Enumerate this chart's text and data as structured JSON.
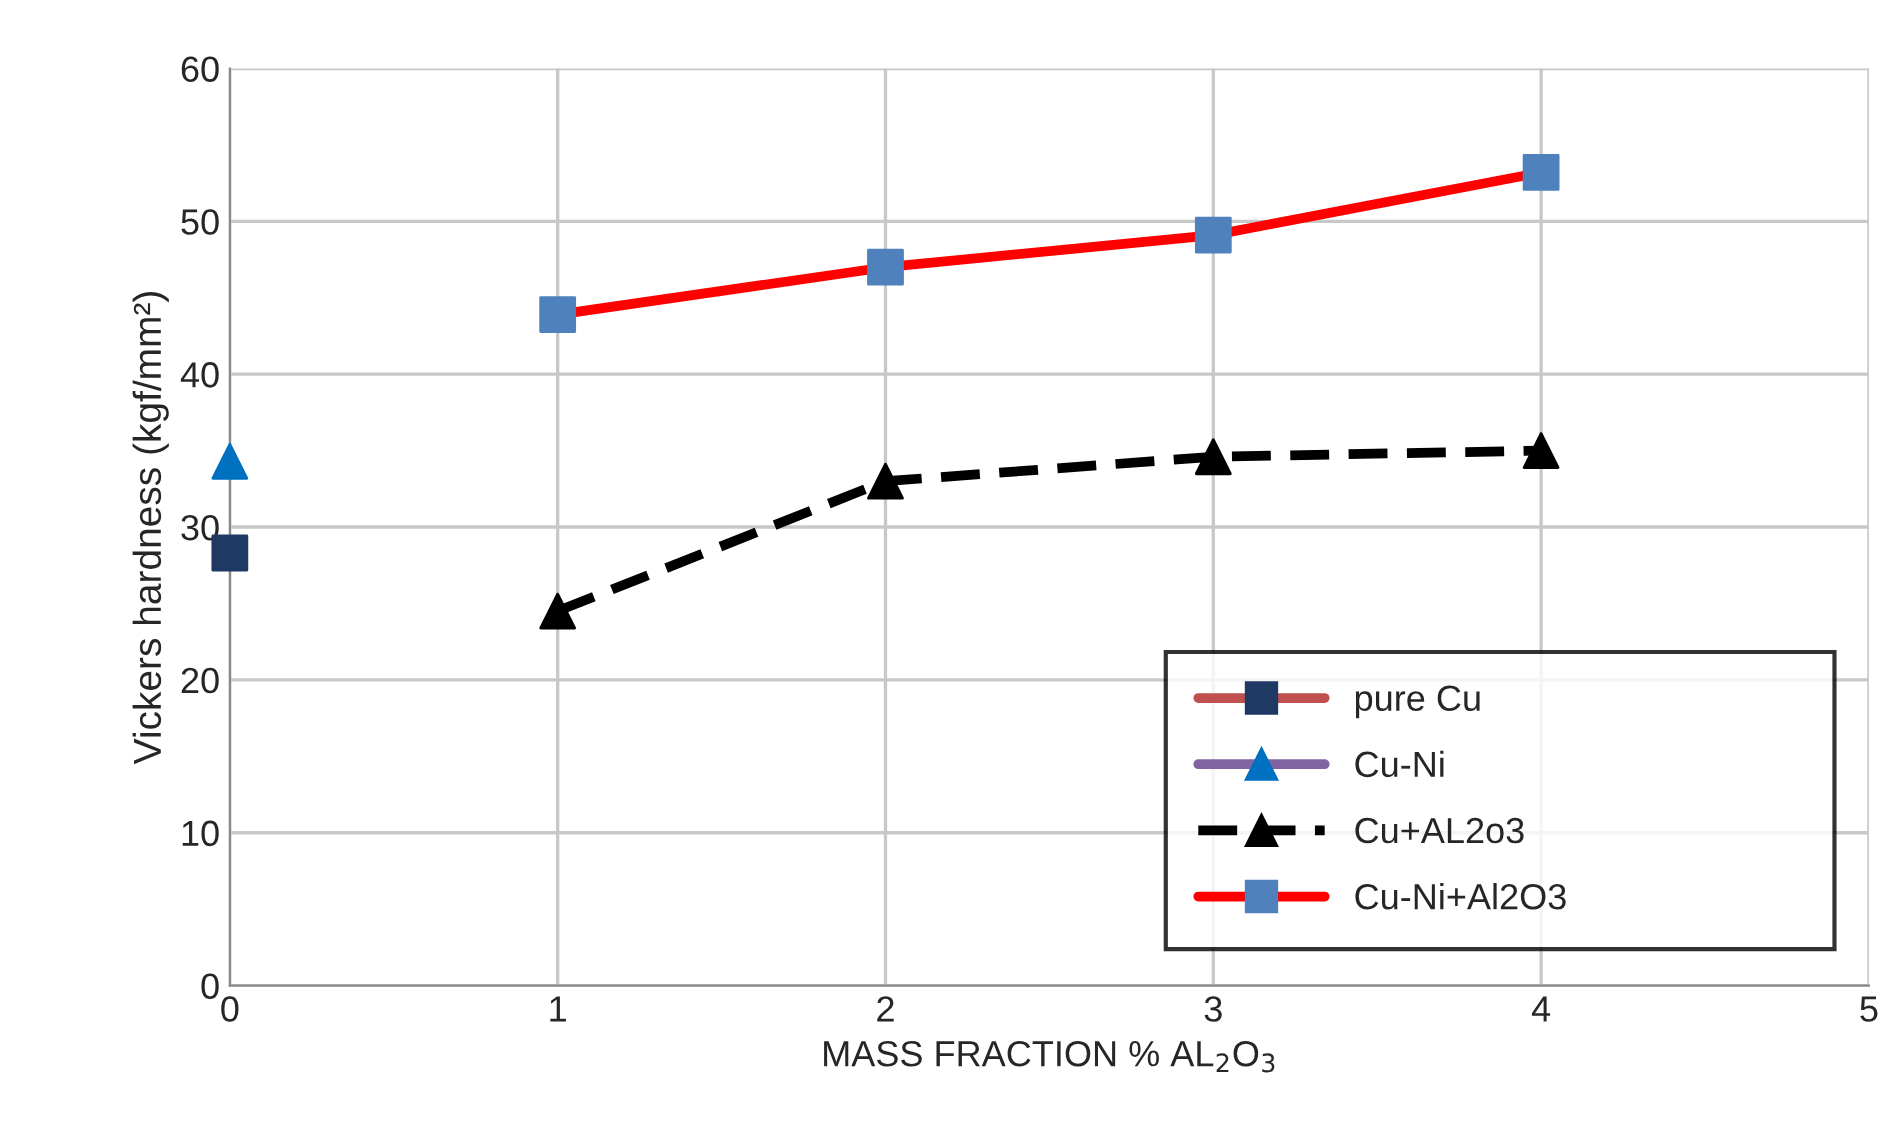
{
  "chart_data": {
    "type": "line",
    "xlabel": "MASS FRACTION % AL$_{2}$O$_{3}$",
    "ylabel": "Vickers hardness (kgf/mm²)",
    "xlim": [
      0,
      5
    ],
    "xticks": [
      0,
      1,
      2,
      3,
      4,
      5
    ],
    "ylim": [
      0,
      60
    ],
    "yticks": [
      0,
      10,
      20,
      30,
      40,
      50,
      60
    ],
    "grid": true,
    "legend": "bottom right",
    "series": [
      {
        "name": "pure Cu",
        "color": "#c0504d",
        "colors": [
          "#1f3864"
        ],
        "marker": "square",
        "line_style": "solid",
        "x": [
          0
        ],
        "values": [
          28.3
        ]
      },
      {
        "name": "Cu-Ni",
        "color": "#8064a2",
        "colors": [
          "#0070c0"
        ],
        "marker": "triangle",
        "line_style": "solid",
        "x": [
          0
        ],
        "values": [
          34.3
        ]
      },
      {
        "name": "Cu+AL2o3",
        "color": "#000000",
        "colors": [
          "#000000",
          "#000000",
          "#000000",
          "#000000"
        ],
        "marker": "triangle",
        "line_style": "dashed",
        "x": [
          1,
          2,
          3,
          4
        ],
        "values": [
          24.5,
          33.0,
          34.6,
          35.0
        ]
      },
      {
        "name": "Cu-Ni+Al2O3",
        "color": "#ff0000",
        "colors": [
          "#4f81bd",
          "#4f81bd",
          "#4f81bd",
          "#4f81bd"
        ],
        "marker": "square",
        "line_style": "solid",
        "x": [
          1,
          2,
          3,
          4
        ],
        "values": [
          43.9,
          47.0,
          49.1,
          53.2
        ]
      }
    ]
  }
}
